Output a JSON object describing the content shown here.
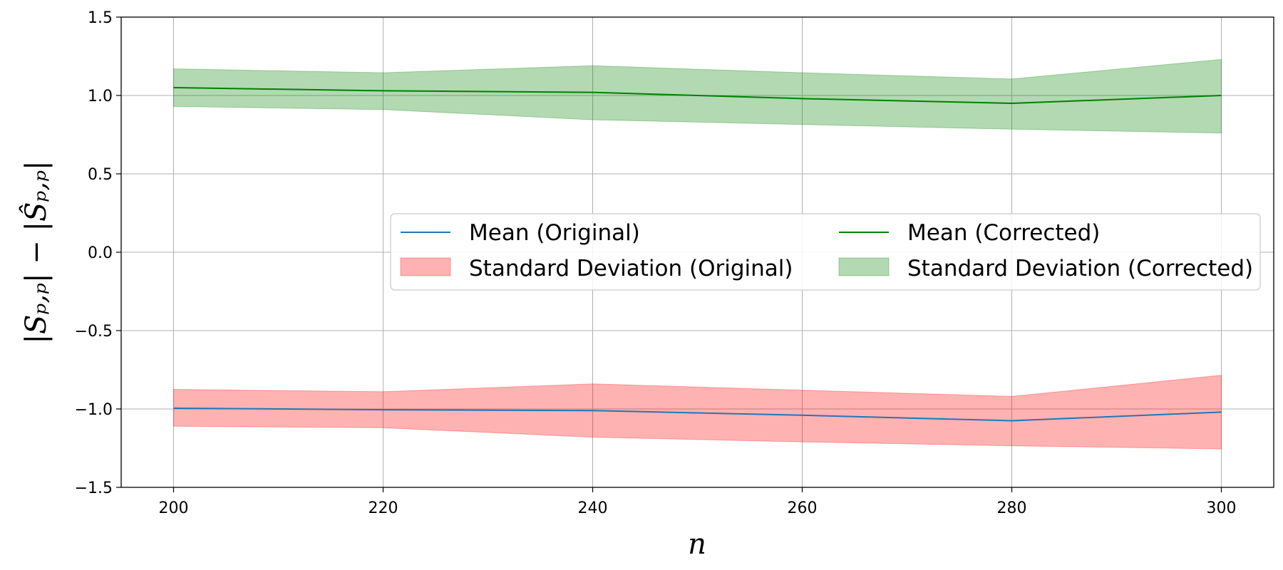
{
  "chart_data": {
    "type": "line",
    "x": [
      200,
      220,
      240,
      260,
      280,
      300
    ],
    "xlim": [
      195,
      305
    ],
    "ylim": [
      -1.5,
      1.5
    ],
    "xticks": [
      "200",
      "220",
      "240",
      "260",
      "280",
      "300"
    ],
    "yticks": [
      "1.5",
      "1.0",
      "0.5",
      "0.0",
      "−0.5",
      "−1.0",
      "−1.5"
    ],
    "ytick_values": [
      1.5,
      1.0,
      0.5,
      0.0,
      -0.5,
      -1.0,
      -1.5
    ],
    "xlabel": "n",
    "ylabel": "|Sₚ,ₚ| − |Ŝₚ,ₚ|",
    "grid": true,
    "legend_position": "center-right",
    "series": [
      {
        "name": "Mean (Original)",
        "kind": "line",
        "color": "#1f77b4",
        "values": [
          -0.995,
          -1.005,
          -1.01,
          -1.04,
          -1.075,
          -1.02
        ]
      },
      {
        "name": "Standard Deviation (Original)",
        "kind": "band",
        "color": "#ff0000",
        "opacity": 0.3,
        "lower": [
          -1.11,
          -1.12,
          -1.18,
          -1.21,
          -1.235,
          -1.255
        ],
        "upper": [
          -0.875,
          -0.89,
          -0.84,
          -0.88,
          -0.92,
          -0.785
        ]
      },
      {
        "name": "Mean (Corrected)",
        "kind": "line",
        "color": "#008000",
        "values": [
          1.05,
          1.03,
          1.02,
          0.98,
          0.95,
          1.0
        ]
      },
      {
        "name": "Standard Deviation (Corrected)",
        "kind": "band",
        "color": "#008000",
        "opacity": 0.3,
        "lower": [
          0.93,
          0.91,
          0.845,
          0.815,
          0.785,
          0.76
        ],
        "upper": [
          1.17,
          1.145,
          1.19,
          1.145,
          1.105,
          1.23
        ]
      }
    ]
  }
}
